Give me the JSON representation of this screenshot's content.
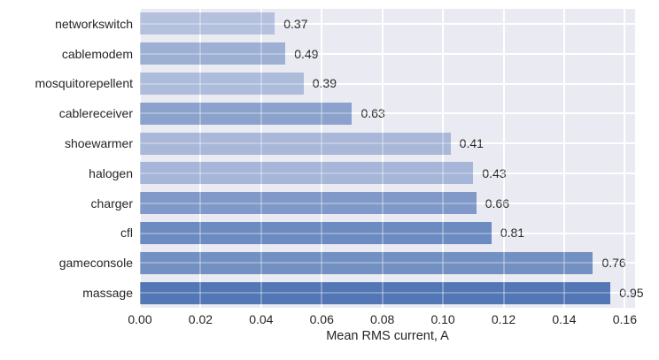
{
  "chart_data": {
    "type": "bar",
    "orientation": "horizontal",
    "title": "",
    "xlabel": "Mean RMS current, A",
    "ylabel": "",
    "categories": [
      "networkswitch",
      "cablemodem",
      "mosquitorepellent",
      "cablereceiver",
      "shoewarmer",
      "halogen",
      "charger",
      "cfl",
      "gameconsole",
      "massage"
    ],
    "values": [
      0.0445,
      0.048,
      0.054,
      0.07,
      0.1025,
      0.11,
      0.111,
      0.116,
      0.1495,
      0.1553
    ],
    "bar_labels": [
      "0.37",
      "0.49",
      "0.39",
      "0.63",
      "0.41",
      "0.43",
      "0.66",
      "0.81",
      "0.76",
      "0.95"
    ],
    "bar_colors": [
      "#b4c1de",
      "#9dafd3",
      "#aebcdb",
      "#8ba3cc",
      "#a9b8d9",
      "#a6b6d8",
      "#8099c9",
      "#6c8bc1",
      "#7390c2",
      "#5377b5"
    ],
    "x_tick_labels": [
      "0.00",
      "0.02",
      "0.04",
      "0.06",
      "0.08",
      "0.10",
      "0.12",
      "0.14",
      "0.16"
    ],
    "x_tick_values": [
      0,
      0.02,
      0.04,
      0.06,
      0.08,
      0.1,
      0.12,
      0.14,
      0.16
    ],
    "xlim": [
      0,
      0.1634
    ],
    "grid": true,
    "legend": "none",
    "colors": {
      "figure_bg": "#ffffff",
      "plot_bg": "#e9eaf2",
      "grid": "#ffffff",
      "text": "#262626"
    }
  }
}
